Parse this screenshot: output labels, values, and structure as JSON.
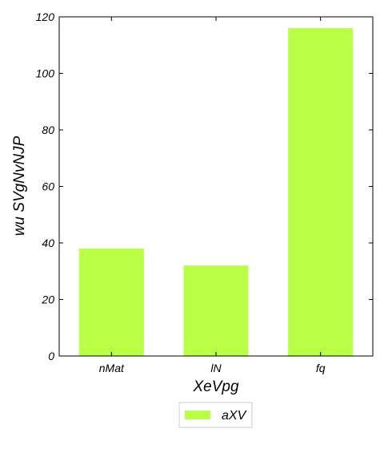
{
  "chart_data": {
    "type": "bar",
    "categories": [
      "nMat",
      "lN",
      "fq"
    ],
    "series": [
      {
        "name": "aXV",
        "values": [
          38,
          32,
          116
        ]
      }
    ],
    "xlabel": "XeVpg",
    "ylabel": "wu SVgNvNJP",
    "ylim": [
      0,
      120
    ],
    "yticks": [
      0,
      20,
      40,
      60,
      80,
      100,
      120
    ],
    "grid": false,
    "legend_position": "bottom-center",
    "colors": {
      "bar": "#b9ff45",
      "axis": "#000000"
    }
  }
}
